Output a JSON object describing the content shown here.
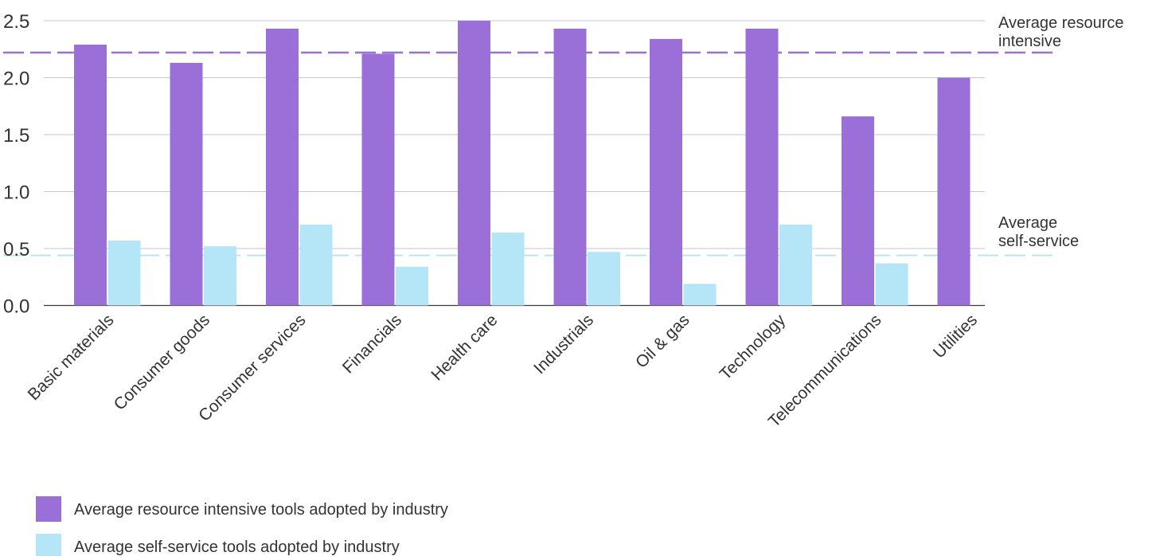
{
  "chart_data": {
    "type": "bar",
    "categories": [
      "Basic materials",
      "Consumer goods",
      "Consumer services",
      "Financials",
      "Health care",
      "Industrials",
      "Oil & gas",
      "Technology",
      "Telecommunications",
      "Utilities"
    ],
    "series": [
      {
        "name": "Average resource intensive tools adopted by industry",
        "color": "#9b6fd8",
        "values": [
          2.29,
          2.13,
          2.43,
          2.21,
          2.5,
          2.43,
          2.34,
          2.43,
          1.66,
          2.0
        ]
      },
      {
        "name": "Average self-service tools adopted by industry",
        "color": "#b5e6f8",
        "values": [
          0.57,
          0.52,
          0.71,
          0.34,
          0.64,
          0.47,
          0.19,
          0.71,
          0.37,
          null
        ]
      }
    ],
    "y_ticks": [
      "0.0",
      "0.5",
      "1.0",
      "1.5",
      "2.0",
      "2.5"
    ],
    "ylim": [
      0,
      2.55
    ],
    "grid": true,
    "legend_position": "bottom-left",
    "reference_lines": [
      {
        "label_lines": [
          "Average resource",
          "intensive"
        ],
        "value": 2.22,
        "color": "#9b6fd8"
      },
      {
        "label_lines": [
          "Average",
          "self-service"
        ],
        "value": 0.44,
        "color": "#b5e6f8"
      }
    ],
    "title": "",
    "xlabel": "",
    "ylabel": ""
  }
}
